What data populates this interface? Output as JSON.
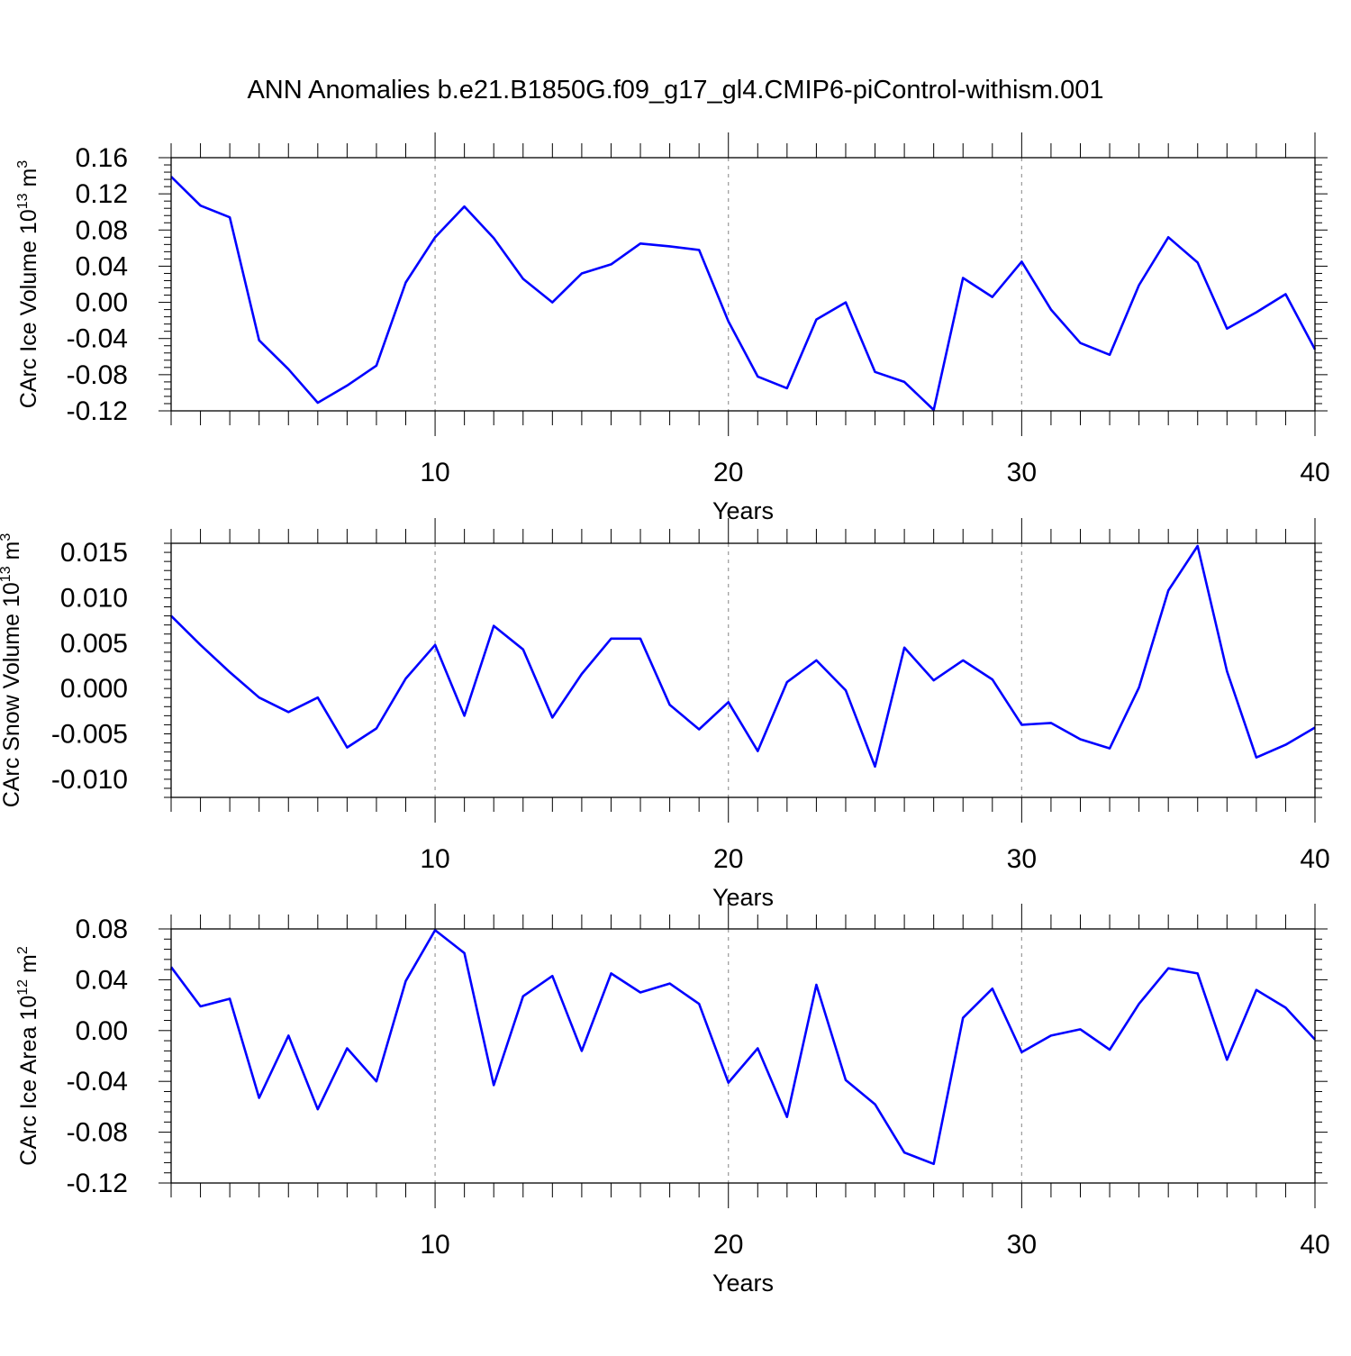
{
  "figure": {
    "title": "ANN Anomalies b.e21.B1850G.f09_g17_gl4.CMIP6-piControl-withism.001"
  },
  "colors": {
    "line": "#0000ff",
    "axis": "#000000",
    "grid": "#999999"
  },
  "chart_data": [
    {
      "type": "line",
      "title": "",
      "xlabel": "Years",
      "ylabel": "CArc Ice Volume 10",
      "ylabel_sup": "13",
      "ylabel_unit": " m",
      "ylabel_unit_sup": "3",
      "xlim": [
        1,
        40
      ],
      "ylim": [
        -0.12,
        0.16
      ],
      "xticks": [
        10,
        20,
        30,
        40
      ],
      "xtick_labels": [
        "10",
        "20",
        "30",
        "40"
      ],
      "yticks": [
        -0.12,
        -0.08,
        -0.04,
        0.0,
        0.04,
        0.08,
        0.12,
        0.16
      ],
      "ytick_labels": [
        "-0.12",
        "-0.08",
        "-0.04",
        "0.00",
        "0.04",
        "0.08",
        "0.12",
        "0.16"
      ],
      "grid_x": [
        10,
        20,
        30
      ],
      "x": [
        1,
        2,
        3,
        4,
        5,
        6,
        7,
        8,
        9,
        10,
        11,
        12,
        13,
        14,
        15,
        16,
        17,
        18,
        19,
        20,
        21,
        22,
        23,
        24,
        25,
        26,
        27,
        28,
        29,
        30,
        31,
        32,
        33,
        34,
        35,
        36,
        37,
        38,
        39,
        40
      ],
      "y": [
        0.139,
        0.107,
        0.094,
        -0.042,
        -0.074,
        -0.111,
        -0.092,
        -0.07,
        0.022,
        0.072,
        0.106,
        0.071,
        0.026,
        0.0,
        0.032,
        0.042,
        0.065,
        0.062,
        0.058,
        -0.021,
        -0.082,
        -0.095,
        -0.019,
        0.0,
        -0.077,
        -0.088,
        -0.119,
        0.027,
        0.006,
        0.045,
        -0.008,
        -0.045,
        -0.058,
        0.019,
        0.072,
        0.044,
        -0.029,
        -0.011,
        0.009,
        -0.052
      ]
    },
    {
      "type": "line",
      "title": "",
      "xlabel": "Years",
      "ylabel": "CArc Snow Volume 10",
      "ylabel_sup": "13",
      "ylabel_unit": " m",
      "ylabel_unit_sup": "3",
      "xlim": [
        1,
        40
      ],
      "ylim": [
        -0.012,
        0.016
      ],
      "xticks": [
        10,
        20,
        30,
        40
      ],
      "xtick_labels": [
        "10",
        "20",
        "30",
        "40"
      ],
      "yticks": [
        -0.01,
        -0.005,
        0.0,
        0.005,
        0.01,
        0.015
      ],
      "ytick_labels": [
        "-0.010",
        "-0.005",
        "0.000",
        "0.005",
        "0.010",
        "0.015"
      ],
      "grid_x": [
        10,
        20,
        30
      ],
      "x": [
        1,
        2,
        3,
        4,
        5,
        6,
        7,
        8,
        9,
        10,
        11,
        12,
        13,
        14,
        15,
        16,
        17,
        18,
        19,
        20,
        21,
        22,
        23,
        24,
        25,
        26,
        27,
        28,
        29,
        30,
        31,
        32,
        33,
        34,
        35,
        36,
        37,
        38,
        39,
        40
      ],
      "y": [
        0.008,
        0.0048,
        0.0018,
        -0.001,
        -0.0026,
        -0.001,
        -0.0065,
        -0.0044,
        0.0011,
        0.0048,
        -0.003,
        0.0069,
        0.0043,
        -0.0032,
        0.0016,
        0.0055,
        0.0055,
        -0.0018,
        -0.0045,
        -0.0015,
        -0.0069,
        0.0007,
        0.0031,
        -0.0002,
        -0.0086,
        0.0045,
        0.0009,
        0.0031,
        0.001,
        -0.004,
        -0.0038,
        -0.0056,
        -0.0066,
        0.0001,
        0.0108,
        0.0157,
        0.0019,
        -0.0076,
        -0.0062,
        -0.0043
      ]
    },
    {
      "type": "line",
      "title": "",
      "xlabel": "Years",
      "ylabel": "CArc Ice Area 10",
      "ylabel_sup": "12",
      "ylabel_unit": " m",
      "ylabel_unit_sup": "2",
      "xlim": [
        1,
        40
      ],
      "ylim": [
        -0.12,
        0.08
      ],
      "xticks": [
        10,
        20,
        30,
        40
      ],
      "xtick_labels": [
        "10",
        "20",
        "30",
        "40"
      ],
      "yticks": [
        -0.12,
        -0.08,
        -0.04,
        0.0,
        0.04,
        0.08
      ],
      "ytick_labels": [
        "-0.12",
        "-0.08",
        "-0.04",
        "0.00",
        "0.04",
        "0.08"
      ],
      "grid_x": [
        10,
        20,
        30
      ],
      "x": [
        1,
        2,
        3,
        4,
        5,
        6,
        7,
        8,
        9,
        10,
        11,
        12,
        13,
        14,
        15,
        16,
        17,
        18,
        19,
        20,
        21,
        22,
        23,
        24,
        25,
        26,
        27,
        28,
        29,
        30,
        31,
        32,
        33,
        34,
        35,
        36,
        37,
        38,
        39,
        40
      ],
      "y": [
        0.05,
        0.019,
        0.025,
        -0.053,
        -0.004,
        -0.062,
        -0.014,
        -0.04,
        0.039,
        0.079,
        0.061,
        -0.043,
        0.027,
        0.043,
        -0.016,
        0.045,
        0.03,
        0.037,
        0.021,
        -0.041,
        -0.014,
        -0.068,
        0.036,
        -0.039,
        -0.058,
        -0.096,
        -0.105,
        0.01,
        0.033,
        -0.017,
        -0.004,
        0.001,
        -0.015,
        0.021,
        0.049,
        0.045,
        -0.023,
        0.032,
        0.018,
        -0.007
      ]
    }
  ]
}
